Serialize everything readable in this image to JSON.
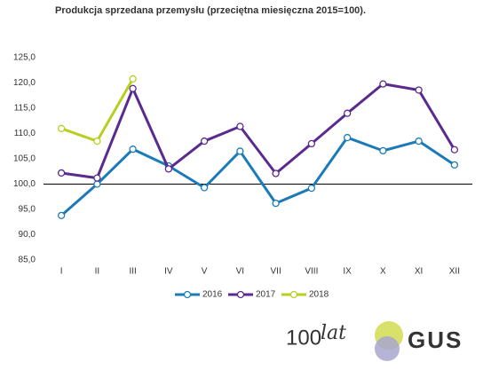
{
  "chart_data": {
    "type": "line",
    "title": "Produkcja sprzedana przemysłu (przeciętna miesięczna 2015=100).",
    "categories": [
      "I",
      "II",
      "III",
      "IV",
      "V",
      "VI",
      "VII",
      "VIII",
      "IX",
      "X",
      "XI",
      "XII"
    ],
    "series": [
      {
        "name": "2016",
        "color": "#1b7bb9",
        "values": [
          93.8,
          100.0,
          106.9,
          103.6,
          99.3,
          106.5,
          96.2,
          99.2,
          109.2,
          106.6,
          108.5,
          103.8
        ]
      },
      {
        "name": "2017",
        "color": "#5a2a8f",
        "values": [
          102.2,
          101.2,
          118.9,
          103.0,
          108.5,
          111.4,
          102.1,
          108.0,
          114.0,
          119.8,
          118.6,
          106.8
        ]
      },
      {
        "name": "2018",
        "color": "#b8cf1f",
        "values": [
          111.0,
          108.5,
          120.8,
          null,
          null,
          null,
          null,
          null,
          null,
          null,
          null,
          null
        ]
      }
    ],
    "ylim": [
      85,
      125
    ],
    "yticks": [
      {
        "value": 85,
        "label": "85,0"
      },
      {
        "value": 90,
        "label": "90,0"
      },
      {
        "value": 95,
        "label": "95,0"
      },
      {
        "value": 100,
        "label": "100,0"
      },
      {
        "value": 105,
        "label": "105,0"
      },
      {
        "value": 110,
        "label": "110,0"
      },
      {
        "value": 115,
        "label": "115,0"
      },
      {
        "value": 120,
        "label": "120,0"
      },
      {
        "value": 125,
        "label": "125,0"
      }
    ],
    "baseline": 100,
    "grid": false,
    "legend": "bottom",
    "logo": {
      "number": "100",
      "word": "lat",
      "brand": "GUS"
    }
  }
}
